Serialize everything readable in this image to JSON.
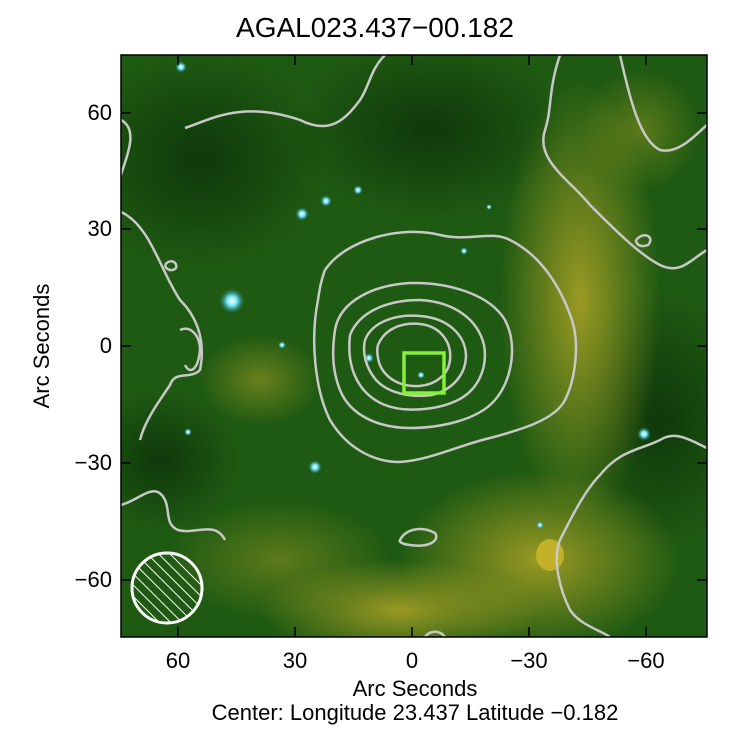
{
  "title": "AGAL023.437−00.182",
  "x_axis": {
    "label": "Arc Seconds",
    "ticks": [
      "60",
      "30",
      "0",
      "−30",
      "−60"
    ]
  },
  "y_axis": {
    "label": "Arc Seconds",
    "ticks": [
      "60",
      "30",
      "0",
      "−30",
      "−60"
    ]
  },
  "center_caption": "Center:  Longitude 23.437 Latitude −0.182",
  "image": {
    "type": "three-color infrared image with contour overlay",
    "colors": {
      "background_green": "#1f5a12",
      "dark_green": "#0b3a08",
      "yellow_emission": "#9a9a1e",
      "contours": "#c8c8c8",
      "marker_box": "#86f03a",
      "stars": "#4fd0ff"
    }
  }
}
